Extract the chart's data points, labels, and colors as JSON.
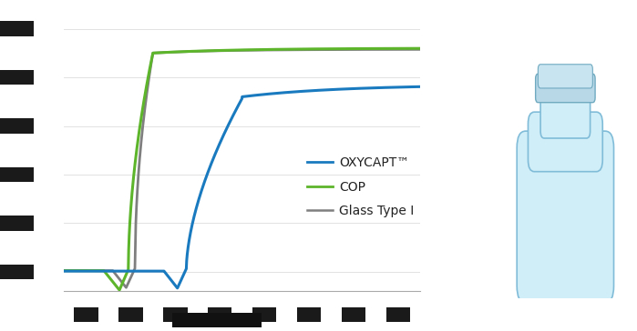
{
  "xlim": [
    240,
    400
  ],
  "ylim": [
    -8,
    105
  ],
  "lines": {
    "oxycapt": {
      "color": "#1a7abf",
      "label": "OXYCAPT™",
      "linewidth": 2.2
    },
    "cop": {
      "color": "#5db52b",
      "label": "COP",
      "linewidth": 2.2
    },
    "glass": {
      "color": "#7f7f7f",
      "label": "Glass Type I",
      "linewidth": 2.0
    }
  },
  "background_color": "#ffffff",
  "legend_fontsize": 10,
  "tick_fontsize": 8
}
